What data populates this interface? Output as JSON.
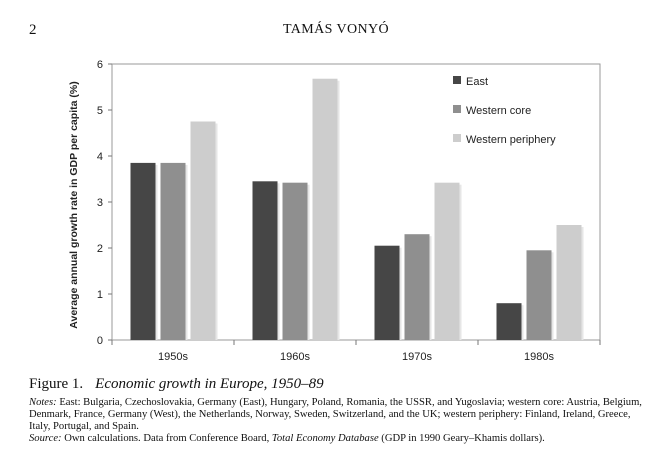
{
  "header": {
    "page_number": "2",
    "running_head": "TAMÁS VONYÓ"
  },
  "chart_data": {
    "type": "bar",
    "title": "",
    "xlabel": "",
    "ylabel": "Average annual growth rate in GDP per capita (%)",
    "categories": [
      "1950s",
      "1960s",
      "1970s",
      "1980s"
    ],
    "ylim": [
      0,
      6
    ],
    "yticks": [
      "0",
      "1",
      "2",
      "3",
      "4",
      "5",
      "6"
    ],
    "legend_position": "top-right",
    "series": [
      {
        "name": "East",
        "color": "#464646",
        "values": [
          3.85,
          3.45,
          2.05,
          0.8
        ]
      },
      {
        "name": "Western core",
        "color": "#8f8f8f",
        "values": [
          3.85,
          3.42,
          2.3,
          1.95
        ]
      },
      {
        "name": "Western periphery",
        "color": "#cdcdcd",
        "values": [
          4.75,
          5.68,
          3.42,
          2.5
        ]
      }
    ]
  },
  "caption": {
    "label": "Figure 1.",
    "title": "Economic growth in Europe, 1950–89"
  },
  "notes": {
    "notes_label": "Notes:",
    "notes_text": "East: Bulgaria, Czechoslovakia, Germany (East), Hungary, Poland, Romania, the USSR, and Yugoslavia; western core: Austria, Belgium, Denmark, France, Germany (West), the Netherlands, Norway, Sweden, Switzerland, and the UK; western periphery: Finland, Ireland, Greece, Italy, Portugal, and Spain.",
    "source_label": "Source:",
    "source_text_before": "Own calculations. Data from Conference Board,",
    "source_db": "Total Economy Database",
    "source_text_after": "(GDP in 1990 Geary–Khamis dollars)."
  }
}
